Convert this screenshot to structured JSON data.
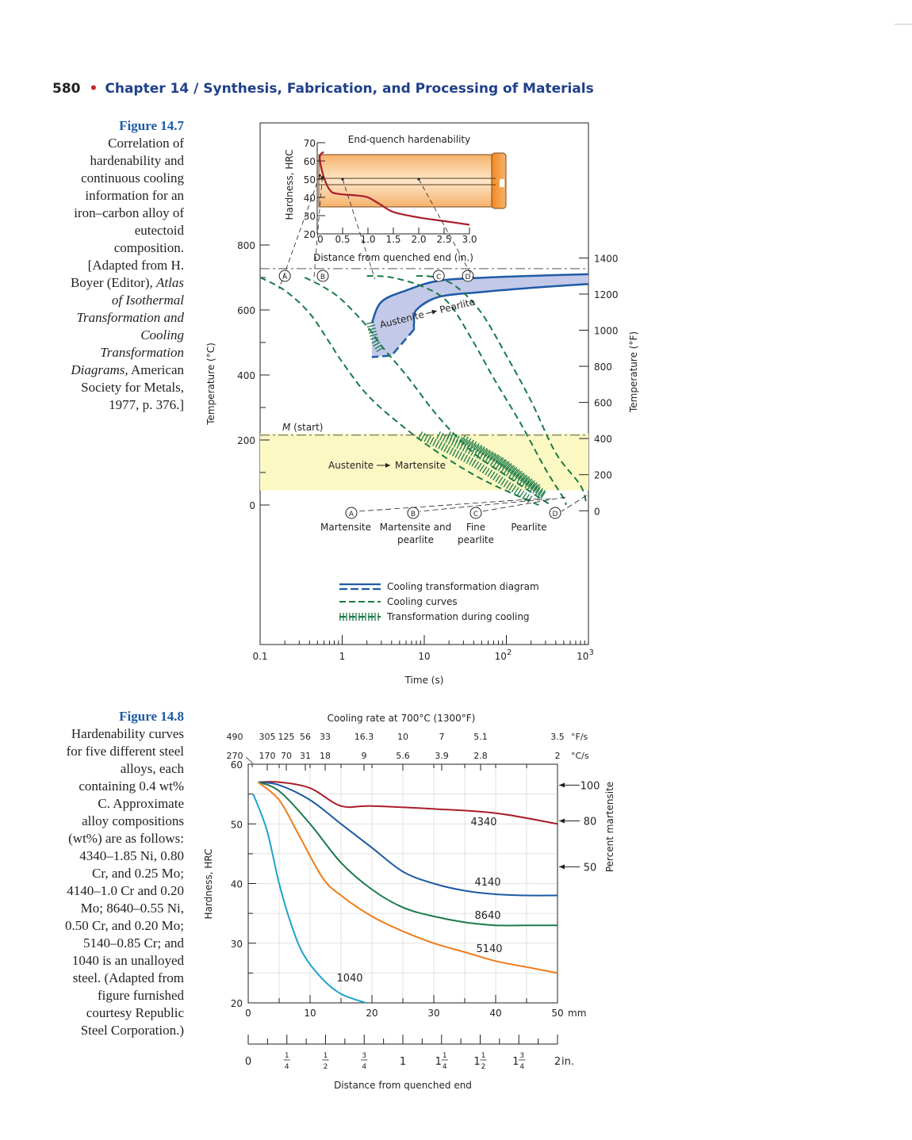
{
  "header": {
    "page_number": "580",
    "bullet": "•",
    "chapter": "Chapter 14  /  Synthesis, Fabrication, and Processing of Materials"
  },
  "figure_14_7": {
    "label": "Figure 14.7",
    "caption_lines": [
      "Correlation of",
      "hardenability and",
      "continuous cooling",
      "information for an",
      "iron–carbon alloy of",
      "eutectoid",
      "composition.",
      "[Adapted from H.",
      "Boyer (Editor), Atlas",
      "of Isothermal",
      "Transformation and",
      "Cooling",
      "Transformation",
      "Diagrams, American",
      "Society for Metals,",
      "1977, p. 376.]"
    ]
  },
  "figure_14_8": {
    "label": "Figure 14.8",
    "caption_lines": [
      "Hardenability curves",
      "for five different steel",
      "alloys, each",
      "containing 0.4 wt%",
      "C. Approximate",
      "alloy compositions",
      "(wt%) are as follows:",
      "4340–1.85 Ni, 0.80",
      "Cr, and 0.25 Mo;",
      "4140–1.0 Cr and 0.20",
      "Mo; 8640–0.55 Ni,",
      "0.50 Cr, and 0.20 Mo;",
      "5140–0.85 Cr; and",
      "1040 is an unalloyed",
      "steel. (Adapted from",
      "figure furnished",
      "courtesy Republic",
      "Steel Corporation.)"
    ]
  },
  "chart_data": [
    {
      "type": "line",
      "title": "",
      "xlabel": "Time (s)",
      "x_scale": "log",
      "xlim": [
        0.1,
        1000
      ],
      "x_ticks": [
        "0.1",
        "1",
        "10",
        "10²",
        "10³"
      ],
      "ylabel_left": "Temperature (°C)",
      "y_ticks_left": [
        "0",
        "200",
        "400",
        "600",
        "800"
      ],
      "ylim": [
        0,
        800
      ],
      "ylabel_right": "Temperature (°F)",
      "y_ticks_right": [
        "0",
        "200",
        "400",
        "600",
        "800",
        "1000",
        "1200",
        "1400"
      ],
      "annotations": {
        "m_start": "M (start)",
        "m_start_italic": "M",
        "m_start_rest": " (start)",
        "austenite_martensite": "Austenite",
        "martensite_word": "Martensite",
        "austenite_pearlite": "Austenite",
        "pearlite_word": "Pearlite",
        "circle_letters": [
          "A",
          "B",
          "C",
          "D"
        ]
      },
      "products": [
        {
          "letter": "A",
          "lines": [
            "Martensite"
          ]
        },
        {
          "letter": "B",
          "lines": [
            "Martensite and",
            "pearlite"
          ]
        },
        {
          "letter": "C",
          "lines": [
            "Fine",
            "pearlite"
          ]
        },
        {
          "letter": "D",
          "lines": [
            "Pearlite"
          ]
        }
      ],
      "legend": [
        {
          "label": "Cooling transformation diagram",
          "style": "blue-double"
        },
        {
          "label": "Cooling curves",
          "style": "green-dashed"
        },
        {
          "label": "Transformation during cooling",
          "style": "green-hatched"
        }
      ],
      "colors": {
        "diagram": "#1f5aa6",
        "curves": "#1a7a46",
        "martensite_band": "#fbf8c4",
        "pearlite_region": "#c3c9e8"
      },
      "series": [
        {
          "label": "A",
          "points": [
            [
              0.1,
              700
            ],
            [
              0.2,
              660
            ],
            [
              0.4,
              590
            ],
            [
              0.7,
              500
            ],
            [
              1,
              440
            ],
            [
              2,
              340
            ],
            [
              5,
              250
            ],
            [
              15,
              160
            ],
            [
              50,
              80
            ],
            [
              200,
              10
            ],
            [
              250,
              0
            ]
          ]
        },
        {
          "label": "B",
          "points": [
            [
              0.35,
              700
            ],
            [
              0.6,
              670
            ],
            [
              1,
              630
            ],
            [
              2,
              550
            ],
            [
              3,
              490
            ],
            [
              6,
              400
            ],
            [
              15,
              270
            ],
            [
              40,
              160
            ],
            [
              100,
              90
            ],
            [
              300,
              10
            ],
            [
              350,
              0
            ]
          ]
        },
        {
          "label": "C",
          "points": [
            [
              2,
              705
            ],
            [
              4,
              700
            ],
            [
              10,
              670
            ],
            [
              20,
              620
            ],
            [
              40,
              500
            ],
            [
              70,
              390
            ],
            [
              150,
              250
            ],
            [
              300,
              110
            ],
            [
              500,
              20
            ],
            [
              530,
              0
            ]
          ]
        },
        {
          "label": "D",
          "points": [
            [
              8,
              705
            ],
            [
              14,
              700
            ],
            [
              25,
              670
            ],
            [
              50,
              590
            ],
            [
              100,
              460
            ],
            [
              200,
              320
            ],
            [
              400,
              160
            ],
            [
              800,
              60
            ],
            [
              950,
              0
            ]
          ]
        }
      ],
      "inset": {
        "title": "End-quench hardenability",
        "xlabel": "Distance from quenched end (in.)",
        "ylabel": "Hardness, HRC",
        "x_ticks": [
          "0",
          "0.5",
          "1.0",
          "1.5",
          "2.0",
          "2.5",
          "3.0"
        ],
        "y_ticks": [
          "20",
          "30",
          "40",
          "50",
          "60",
          "70"
        ],
        "xlim": [
          0,
          3.0
        ],
        "ylim": [
          20,
          70
        ],
        "points": [
          [
            0,
            65
          ],
          [
            0.05,
            62
          ],
          [
            0.12,
            52
          ],
          [
            0.25,
            44
          ],
          [
            0.4,
            42
          ],
          [
            0.8,
            41
          ],
          [
            1.0,
            40
          ],
          [
            1.25,
            36
          ],
          [
            1.5,
            32
          ],
          [
            2.0,
            29
          ],
          [
            2.5,
            27
          ],
          [
            3.0,
            25
          ]
        ]
      }
    },
    {
      "type": "line",
      "title": "Cooling rate at 700°C (1300°F)",
      "xlabel": "Distance from quenched end",
      "ylabel": "Hardness, HRC",
      "ylabel_right": "Percent martensite",
      "x_units_mm": "mm",
      "x_units_in": "in.",
      "xlim": [
        0,
        50
      ],
      "ylim": [
        20,
        60
      ],
      "x_ticks_mm": [
        "0",
        "10",
        "20",
        "30",
        "40",
        "50"
      ],
      "y_ticks": [
        "20",
        "30",
        "40",
        "50",
        "60"
      ],
      "rate_F_label": "°F/s",
      "rate_C_label": "°C/s",
      "rate_F": [
        "490",
        "305",
        "125",
        "56",
        "33",
        "16.3",
        "10",
        "7",
        "5.1",
        "3.5"
      ],
      "rate_C": [
        "270",
        "170",
        "70",
        "31",
        "18",
        "9",
        "5.6",
        "3.9",
        "2.8",
        "2"
      ],
      "inch_labels": [
        "0",
        "1/4",
        "1/2",
        "3/4",
        "1",
        "1 1/4",
        "1 1/2",
        "1 3/4",
        "2"
      ],
      "percent_martensite": [
        "100",
        "80",
        "50"
      ],
      "colors": {
        "4340": "#a91d2b",
        "4140": "#1b5aa3",
        "8640": "#1b7b4c",
        "5140": "#ee7c1a",
        "1040": "#1ea2cc"
      },
      "series": [
        {
          "name": "4340",
          "x": [
            1.6,
            5,
            10,
            15,
            20,
            30,
            40,
            50
          ],
          "y": [
            57,
            57,
            56,
            53,
            53,
            52.5,
            51.8,
            50
          ]
        },
        {
          "name": "4140",
          "x": [
            1.6,
            5,
            10,
            15,
            20,
            25,
            30,
            35,
            40,
            45,
            50
          ],
          "y": [
            57,
            56.5,
            54,
            50,
            46,
            42,
            40,
            38.8,
            38.2,
            38,
            38
          ]
        },
        {
          "name": "8640",
          "x": [
            1.6,
            5,
            10,
            15,
            20,
            25,
            30,
            35,
            40,
            45,
            50
          ],
          "y": [
            57,
            55.5,
            50,
            43.5,
            39,
            36,
            34.5,
            33.5,
            33,
            33,
            33
          ]
        },
        {
          "name": "5140",
          "x": [
            1.6,
            5,
            8,
            12,
            15,
            20,
            25,
            30,
            35,
            40,
            45,
            50
          ],
          "y": [
            57,
            54,
            48.5,
            41,
            38,
            34.5,
            32,
            30,
            28.5,
            27,
            26,
            25
          ]
        },
        {
          "name": "1040",
          "x": [
            0.8,
            3,
            5,
            7,
            9,
            12,
            15,
            19
          ],
          "y": [
            55,
            49,
            40,
            33,
            28,
            24,
            21.5,
            20
          ]
        }
      ]
    }
  ]
}
